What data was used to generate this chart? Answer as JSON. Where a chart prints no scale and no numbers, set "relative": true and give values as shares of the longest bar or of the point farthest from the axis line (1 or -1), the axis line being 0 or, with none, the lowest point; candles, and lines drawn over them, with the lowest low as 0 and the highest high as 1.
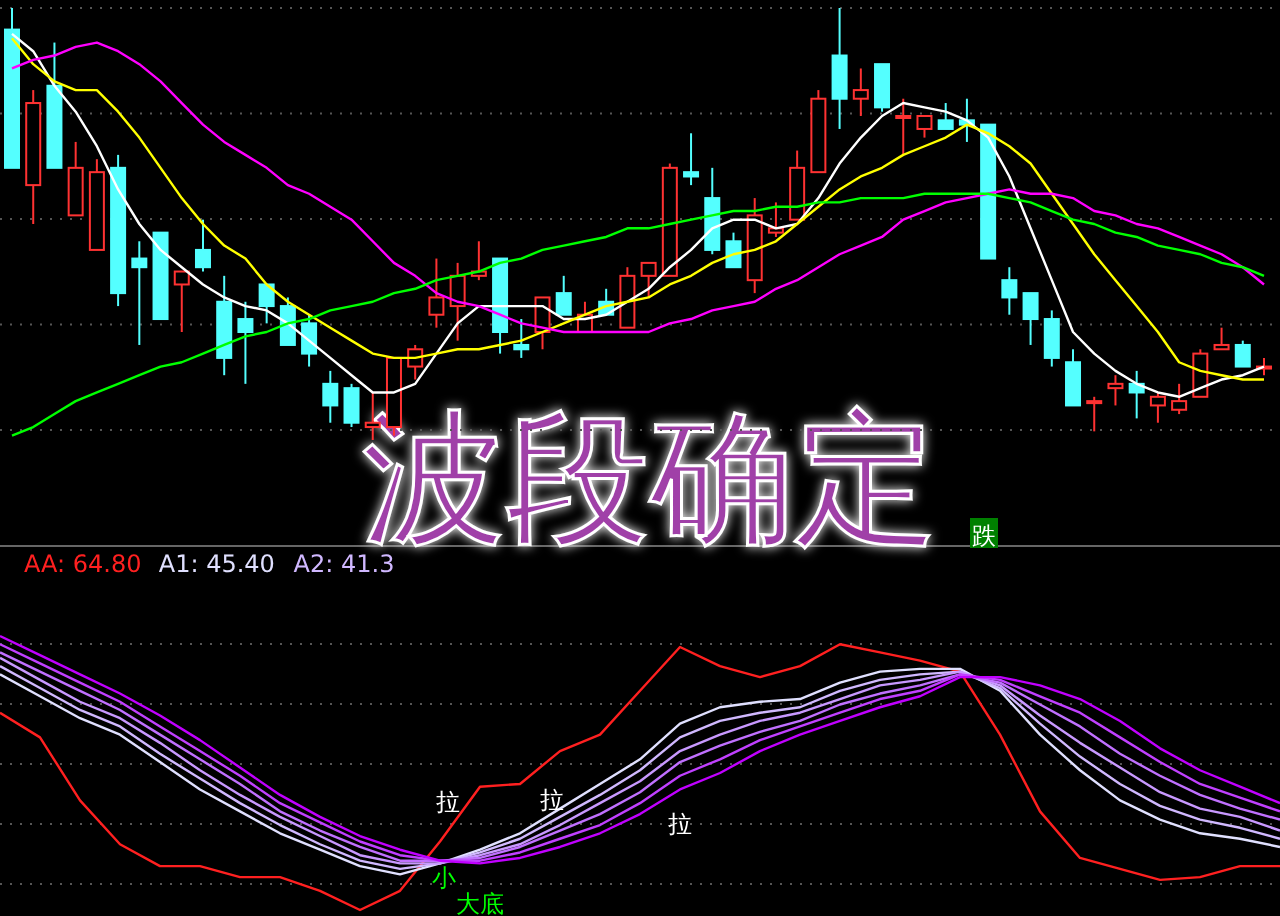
{
  "chart_data": [
    {
      "type": "candlestick",
      "title": "波段确定",
      "relative": true,
      "grid": true,
      "categories": [
        null,
        null,
        null,
        null,
        null,
        null,
        null,
        null,
        null,
        null,
        null,
        null,
        null,
        null,
        null,
        null,
        null,
        null,
        null,
        null,
        null,
        null,
        null,
        null,
        null,
        null,
        null,
        null,
        null,
        null,
        null,
        null,
        null,
        null,
        null,
        null,
        null,
        null,
        null,
        null,
        null,
        null,
        null,
        null,
        null,
        null,
        null,
        null,
        null,
        null,
        null,
        null,
        null,
        null,
        null,
        null,
        null,
        null,
        null,
        null
      ],
      "ohlc": [
        [
          0.95,
          1.0,
          0.63,
          0.63
        ],
        [
          0.59,
          0.81,
          0.5,
          0.78
        ],
        [
          0.82,
          0.92,
          0.63,
          0.63
        ],
        [
          0.52,
          0.69,
          0.52,
          0.63
        ],
        [
          0.44,
          0.65,
          0.44,
          0.62
        ],
        [
          0.63,
          0.66,
          0.31,
          0.34
        ],
        [
          0.42,
          0.46,
          0.22,
          0.4
        ],
        [
          0.48,
          0.48,
          0.28,
          0.28
        ],
        [
          0.36,
          0.39,
          0.25,
          0.39
        ],
        [
          0.44,
          0.51,
          0.39,
          0.4
        ],
        [
          0.32,
          0.38,
          0.15,
          0.19
        ],
        [
          0.28,
          0.32,
          0.13,
          0.25
        ],
        [
          0.36,
          0.36,
          0.27,
          0.31
        ],
        [
          0.31,
          0.33,
          0.22,
          0.22
        ],
        [
          0.27,
          0.29,
          0.17,
          0.2
        ],
        [
          0.13,
          0.16,
          0.04,
          0.08
        ],
        [
          0.12,
          0.13,
          0.03,
          0.04
        ],
        [
          0.03,
          0.11,
          0,
          0.04
        ],
        [
          0.03,
          0.19,
          0.01,
          0.19
        ],
        [
          0.17,
          0.22,
          0.14,
          0.21
        ],
        [
          0.29,
          0.42,
          0.26,
          0.33
        ],
        [
          0.31,
          0.41,
          0.23,
          0.38
        ],
        [
          0.38,
          0.46,
          0.37,
          0.39
        ],
        [
          0.42,
          0.42,
          0.2,
          0.25
        ],
        [
          0.22,
          0.28,
          0.19,
          0.21
        ],
        [
          0.25,
          0.33,
          0.21,
          0.33
        ],
        [
          0.34,
          0.38,
          0.29,
          0.29
        ],
        [
          0.25,
          0.32,
          0.25,
          0.29
        ],
        [
          0.32,
          0.35,
          0.29,
          0.29
        ],
        [
          0.26,
          0.4,
          0.26,
          0.38
        ],
        [
          0.38,
          0.41,
          0.33,
          0.41
        ],
        [
          0.38,
          0.64,
          0.38,
          0.63
        ],
        [
          0.62,
          0.71,
          0.59,
          0.61
        ],
        [
          0.56,
          0.63,
          0.43,
          0.44
        ],
        [
          0.46,
          0.48,
          0.4,
          0.4
        ],
        [
          0.37,
          0.56,
          0.34,
          0.52
        ],
        [
          0.48,
          0.55,
          0.47,
          0.49
        ],
        [
          0.51,
          0.67,
          0.51,
          0.63
        ],
        [
          0.62,
          0.81,
          0.62,
          0.79
        ],
        [
          0.89,
          1.0,
          0.72,
          0.79
        ],
        [
          0.79,
          0.86,
          0.75,
          0.81
        ],
        [
          0.87,
          0.87,
          0.76,
          0.77
        ],
        [
          0.75,
          0.79,
          0.66,
          0.75
        ],
        [
          0.72,
          0.75,
          0.7,
          0.75
        ],
        [
          0.74,
          0.78,
          0.72,
          0.72
        ],
        [
          0.74,
          0.79,
          0.69,
          0.73
        ],
        [
          0.73,
          0.73,
          0.42,
          0.42
        ],
        [
          0.37,
          0.4,
          0.29,
          0.33
        ],
        [
          0.34,
          0.34,
          0.22,
          0.28
        ],
        [
          0.28,
          0.3,
          0.17,
          0.19
        ],
        [
          0.18,
          0.21,
          0.08,
          0.08
        ],
        [
          0.09,
          0.1,
          0.02,
          0.09
        ],
        [
          0.12,
          0.15,
          0.08,
          0.13
        ],
        [
          0.13,
          0.16,
          0.05,
          0.11
        ],
        [
          0.08,
          0.11,
          0.04,
          0.1
        ],
        [
          0.07,
          0.13,
          0.06,
          0.09
        ],
        [
          0.1,
          0.21,
          0.1,
          0.2
        ],
        [
          0.21,
          0.26,
          0.21,
          0.22
        ],
        [
          0.22,
          0.23,
          0.17,
          0.17
        ],
        [
          0.17,
          0.19,
          0.15,
          0.17
        ]
      ],
      "series": [
        {
          "type": "line",
          "color": "#ffffff",
          "values": [
            0.94,
            0.9,
            0.82,
            0.76,
            0.68,
            0.58,
            0.5,
            0.44,
            0.4,
            0.36,
            0.33,
            0.31,
            0.3,
            0.27,
            0.23,
            0.19,
            0.15,
            0.11,
            0.11,
            0.13,
            0.2,
            0.27,
            0.31,
            0.31,
            0.31,
            0.31,
            0.28,
            0.28,
            0.29,
            0.32,
            0.35,
            0.4,
            0.44,
            0.49,
            0.51,
            0.51,
            0.49,
            0.5,
            0.56,
            0.64,
            0.7,
            0.75,
            0.78,
            0.77,
            0.76,
            0.74,
            0.7,
            0.61,
            0.49,
            0.37,
            0.25,
            0.2,
            0.16,
            0.13,
            0.11,
            0.1,
            0.12,
            0.14,
            0.15,
            0.17
          ]
        },
        {
          "type": "line",
          "color": "#ffff00",
          "values": [
            0.93,
            0.87,
            0.83,
            0.81,
            0.81,
            0.76,
            0.7,
            0.63,
            0.56,
            0.5,
            0.45,
            0.42,
            0.36,
            0.32,
            0.29,
            0.26,
            0.23,
            0.2,
            0.19,
            0.19,
            0.2,
            0.21,
            0.21,
            0.22,
            0.23,
            0.25,
            0.27,
            0.29,
            0.31,
            0.32,
            0.33,
            0.36,
            0.38,
            0.41,
            0.43,
            0.44,
            0.46,
            0.5,
            0.54,
            0.58,
            0.61,
            0.63,
            0.66,
            0.68,
            0.7,
            0.73,
            0.71,
            0.68,
            0.64,
            0.57,
            0.5,
            0.43,
            0.37,
            0.31,
            0.25,
            0.18,
            0.16,
            0.15,
            0.14,
            0.14
          ]
        },
        {
          "type": "line",
          "color": "#ff00ff",
          "values": [
            0.86,
            0.88,
            0.89,
            0.91,
            0.92,
            0.9,
            0.87,
            0.83,
            0.78,
            0.73,
            0.69,
            0.66,
            0.63,
            0.59,
            0.57,
            0.54,
            0.51,
            0.46,
            0.41,
            0.38,
            0.34,
            0.32,
            0.31,
            0.29,
            0.27,
            0.26,
            0.25,
            0.25,
            0.25,
            0.25,
            0.25,
            0.27,
            0.28,
            0.3,
            0.31,
            0.32,
            0.35,
            0.37,
            0.4,
            0.43,
            0.45,
            0.47,
            0.51,
            0.53,
            0.55,
            0.56,
            0.57,
            0.58,
            0.57,
            0.57,
            0.56,
            0.53,
            0.52,
            0.5,
            0.49,
            0.47,
            0.45,
            0.43,
            0.4,
            0.36
          ]
        },
        {
          "type": "line",
          "color": "#00ff00",
          "values": [
            0.01,
            0.03,
            0.06,
            0.09,
            0.11,
            0.13,
            0.15,
            0.17,
            0.18,
            0.2,
            0.22,
            0.24,
            0.25,
            0.27,
            0.28,
            0.3,
            0.31,
            0.32,
            0.34,
            0.35,
            0.37,
            0.38,
            0.39,
            0.41,
            0.42,
            0.44,
            0.45,
            0.46,
            0.47,
            0.49,
            0.49,
            0.5,
            0.51,
            0.52,
            0.53,
            0.53,
            0.54,
            0.54,
            0.55,
            0.55,
            0.56,
            0.56,
            0.56,
            0.57,
            0.57,
            0.57,
            0.57,
            0.56,
            0.55,
            0.53,
            0.51,
            0.5,
            0.48,
            0.47,
            0.45,
            0.44,
            0.43,
            0.41,
            0.4,
            0.38
          ]
        }
      ],
      "annotations": [
        "跌"
      ]
    },
    {
      "type": "line",
      "relative": true,
      "grid": true,
      "legend": "top left",
      "categories": [
        null,
        null,
        null,
        null,
        null,
        null,
        null,
        null,
        null,
        null,
        null,
        null,
        null,
        null,
        null,
        null,
        null,
        null,
        null,
        null,
        null,
        null,
        null,
        null,
        null,
        null,
        null,
        null,
        null,
        null,
        null,
        null,
        null
      ],
      "series": [
        {
          "name": "AA: 64.80",
          "color": "#ff2020",
          "values": [
            0.72,
            0.63,
            0.4,
            0.24,
            0.16,
            0.16,
            0.12,
            0.12,
            0.07,
            0,
            0.07,
            0.25,
            0.45,
            0.46,
            0.58,
            0.64,
            0.8,
            0.96,
            0.89,
            0.85,
            0.89,
            0.97,
            0.94,
            0.91,
            0.87,
            0.64,
            0.36,
            0.19,
            0.15,
            0.11,
            0.12,
            0.16,
            0.16
          ]
        },
        {
          "name": "A1: 45.40",
          "color": "#e0e0ff",
          "values": [
            0.86,
            0.78,
            0.7,
            0.64,
            0.54,
            0.44,
            0.36,
            0.28,
            0.22,
            0.16,
            0.13,
            0.17,
            0.22,
            0.28,
            0.37,
            0.46,
            0.55,
            0.68,
            0.74,
            0.76,
            0.77,
            0.83,
            0.87,
            0.88,
            0.88,
            0.8,
            0.64,
            0.51,
            0.4,
            0.33,
            0.28,
            0.26,
            0.23
          ]
        },
        {
          "name": "A2: 41.3",
          "color": "#d0b8ff",
          "values": [
            0.89,
            0.81,
            0.73,
            0.67,
            0.57,
            0.48,
            0.39,
            0.31,
            0.24,
            0.18,
            0.15,
            0.17,
            0.21,
            0.26,
            0.34,
            0.42,
            0.51,
            0.63,
            0.69,
            0.72,
            0.74,
            0.8,
            0.84,
            0.86,
            0.87,
            0.81,
            0.68,
            0.56,
            0.46,
            0.38,
            0.33,
            0.3,
            0.26
          ]
        },
        {
          "color": "#c898ff",
          "values": [
            0.92,
            0.84,
            0.76,
            0.7,
            0.61,
            0.51,
            0.42,
            0.34,
            0.27,
            0.2,
            0.17,
            0.17,
            0.2,
            0.24,
            0.31,
            0.39,
            0.47,
            0.58,
            0.64,
            0.69,
            0.72,
            0.77,
            0.82,
            0.84,
            0.87,
            0.82,
            0.71,
            0.61,
            0.52,
            0.43,
            0.37,
            0.34,
            0.29
          ]
        },
        {
          "color": "#c070ff",
          "values": [
            0.94,
            0.87,
            0.8,
            0.73,
            0.64,
            0.55,
            0.46,
            0.36,
            0.29,
            0.23,
            0.18,
            0.18,
            0.19,
            0.23,
            0.29,
            0.35,
            0.43,
            0.54,
            0.6,
            0.65,
            0.69,
            0.75,
            0.79,
            0.82,
            0.86,
            0.83,
            0.75,
            0.67,
            0.57,
            0.49,
            0.42,
            0.37,
            0.33
          ]
        },
        {
          "color": "#c040ff",
          "values": [
            0.97,
            0.9,
            0.83,
            0.76,
            0.67,
            0.58,
            0.49,
            0.39,
            0.32,
            0.25,
            0.2,
            0.18,
            0.18,
            0.21,
            0.26,
            0.31,
            0.39,
            0.49,
            0.55,
            0.62,
            0.67,
            0.72,
            0.77,
            0.8,
            0.86,
            0.84,
            0.78,
            0.72,
            0.63,
            0.54,
            0.46,
            0.41,
            0.36
          ]
        },
        {
          "color": "#c000ff",
          "values": [
            1.0,
            0.93,
            0.86,
            0.79,
            0.71,
            0.62,
            0.52,
            0.42,
            0.34,
            0.27,
            0.22,
            0.18,
            0.17,
            0.19,
            0.23,
            0.28,
            0.35,
            0.44,
            0.5,
            0.58,
            0.64,
            0.69,
            0.74,
            0.78,
            0.85,
            0.85,
            0.82,
            0.77,
            0.69,
            0.59,
            0.51,
            0.45,
            0.39
          ]
        }
      ],
      "annotations": [
        "拉",
        "拉",
        "拉",
        "小",
        "大底"
      ]
    }
  ]
}
